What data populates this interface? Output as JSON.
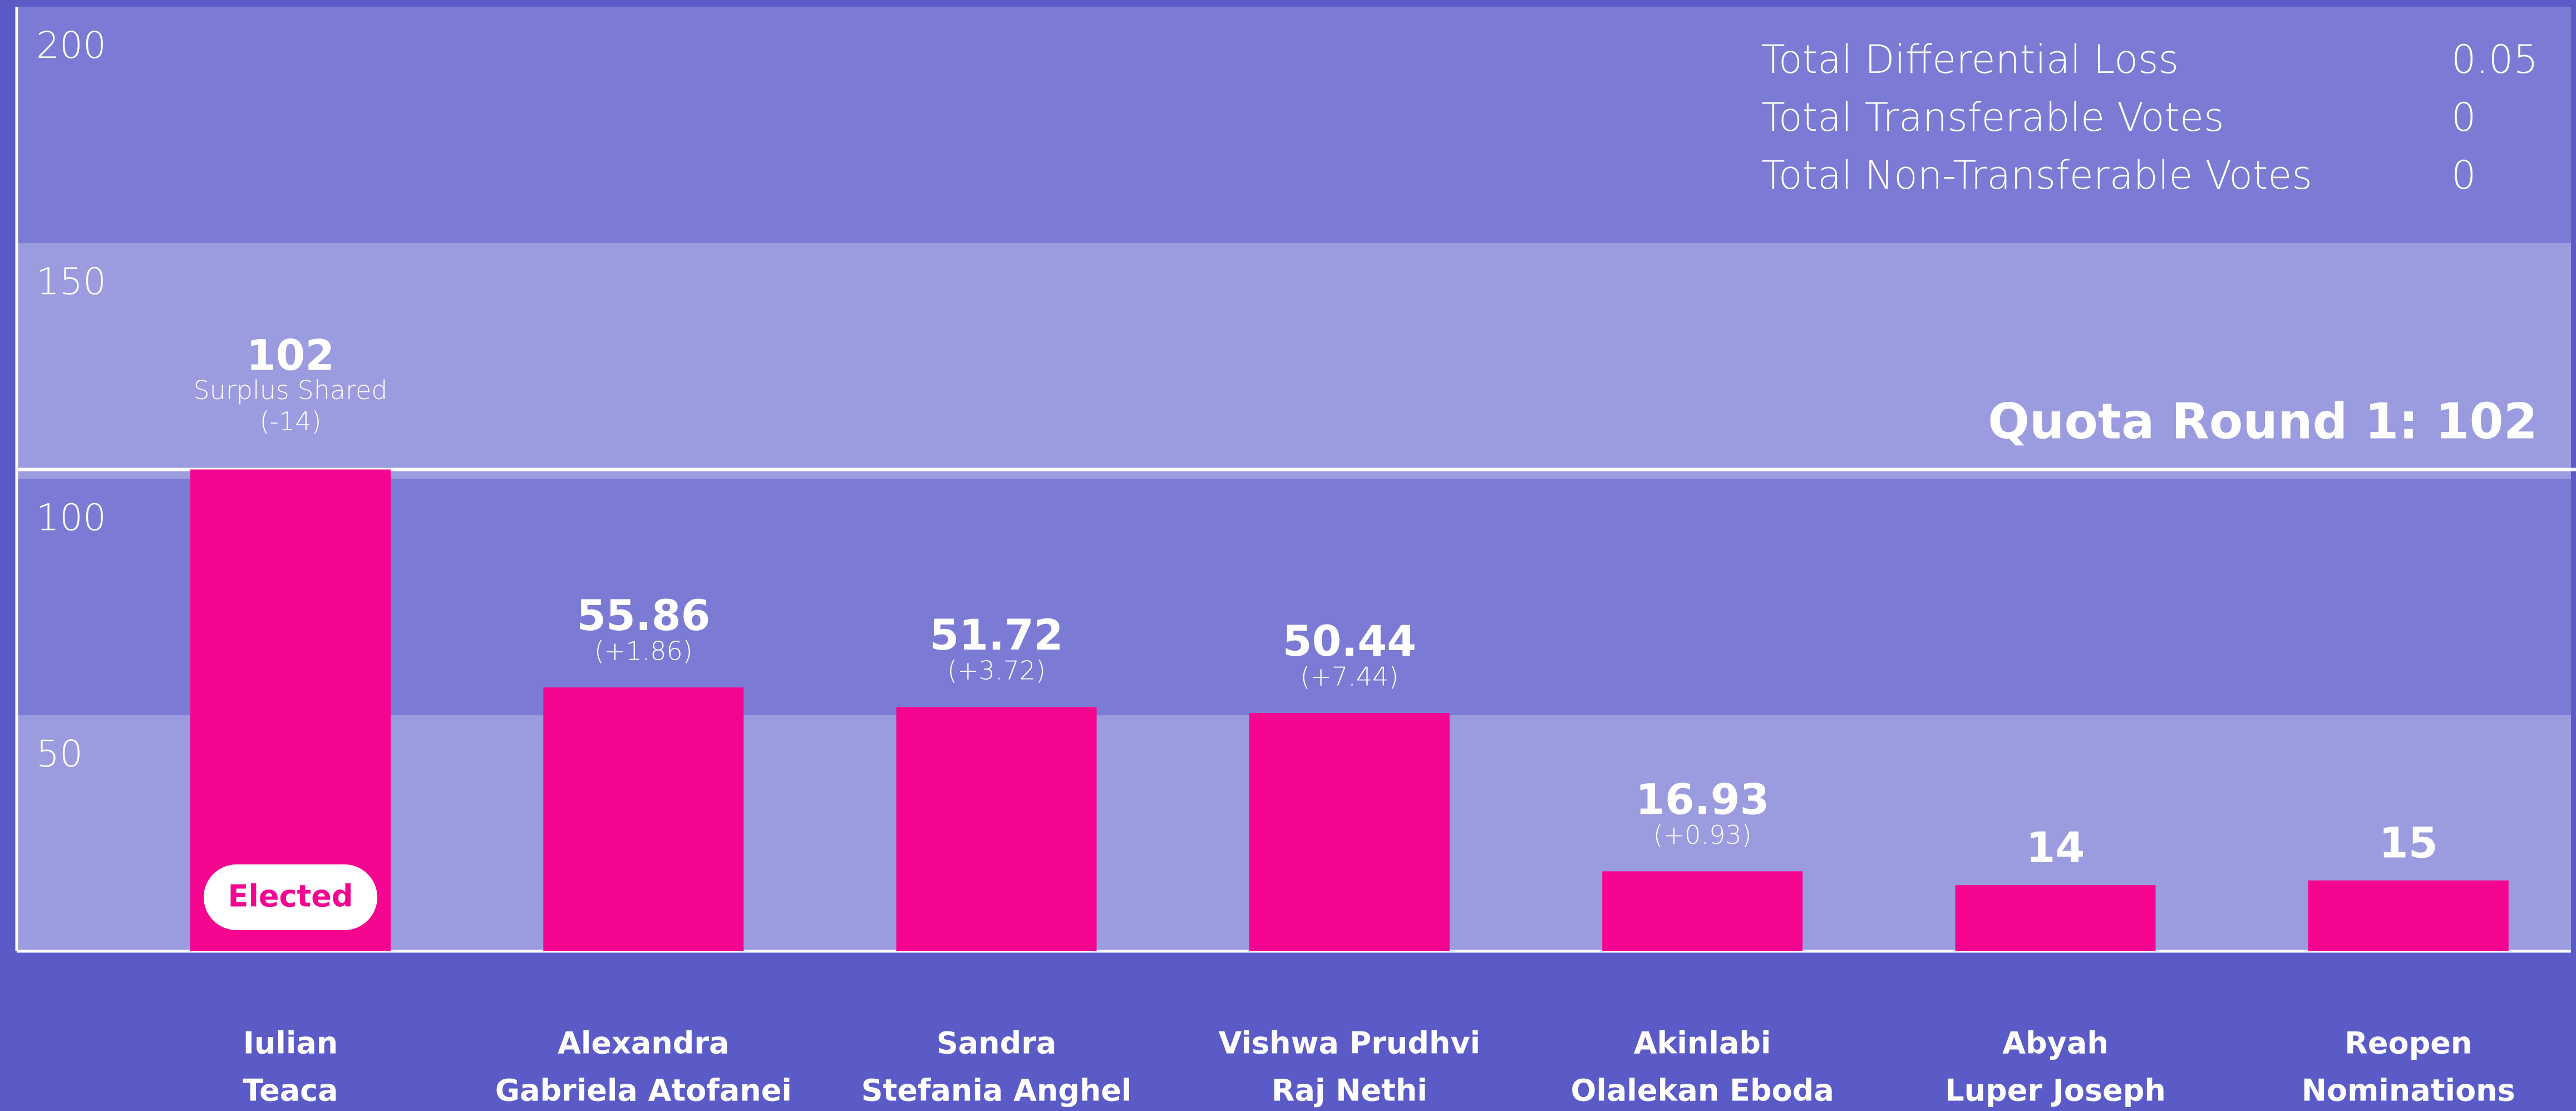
{
  "chart_data": {
    "type": "bar",
    "categories": [
      [
        "Iulian",
        "Teaca"
      ],
      [
        "Alexandra",
        "Gabriela Atofanei"
      ],
      [
        "Sandra",
        "Stefania Anghel"
      ],
      [
        "Vishwa Prudhvi",
        "Raj Nethi"
      ],
      [
        "Akinlabi",
        "Olalekan Eboda"
      ],
      [
        "Abyah",
        "Luper Joseph"
      ],
      [
        "Reopen",
        "Nominations"
      ]
    ],
    "values": [
      102,
      55.86,
      51.72,
      50.44,
      16.93,
      14,
      15
    ],
    "changes": [
      "(-14)",
      "(+1.86)",
      "(+3.72)",
      "(+7.44)",
      "(+0.93)",
      null,
      null
    ],
    "notes": [
      "Surplus Shared",
      null,
      null,
      null,
      null,
      null,
      null
    ],
    "status_labels": [
      "Elected",
      null,
      null,
      null,
      null,
      null,
      null
    ],
    "color": "#f5058f",
    "ylim": [
      0,
      200
    ],
    "yticks": [
      50,
      100,
      150,
      200
    ],
    "quota": {
      "value": 102,
      "label": "Quota Round 1: 102"
    },
    "stats": [
      {
        "label": "Total Differential Loss",
        "value": 0.05
      },
      {
        "label": "Total Transferable Votes",
        "value": 0
      },
      {
        "label": "Total Non-Transferable Votes",
        "value": 0
      }
    ]
  }
}
